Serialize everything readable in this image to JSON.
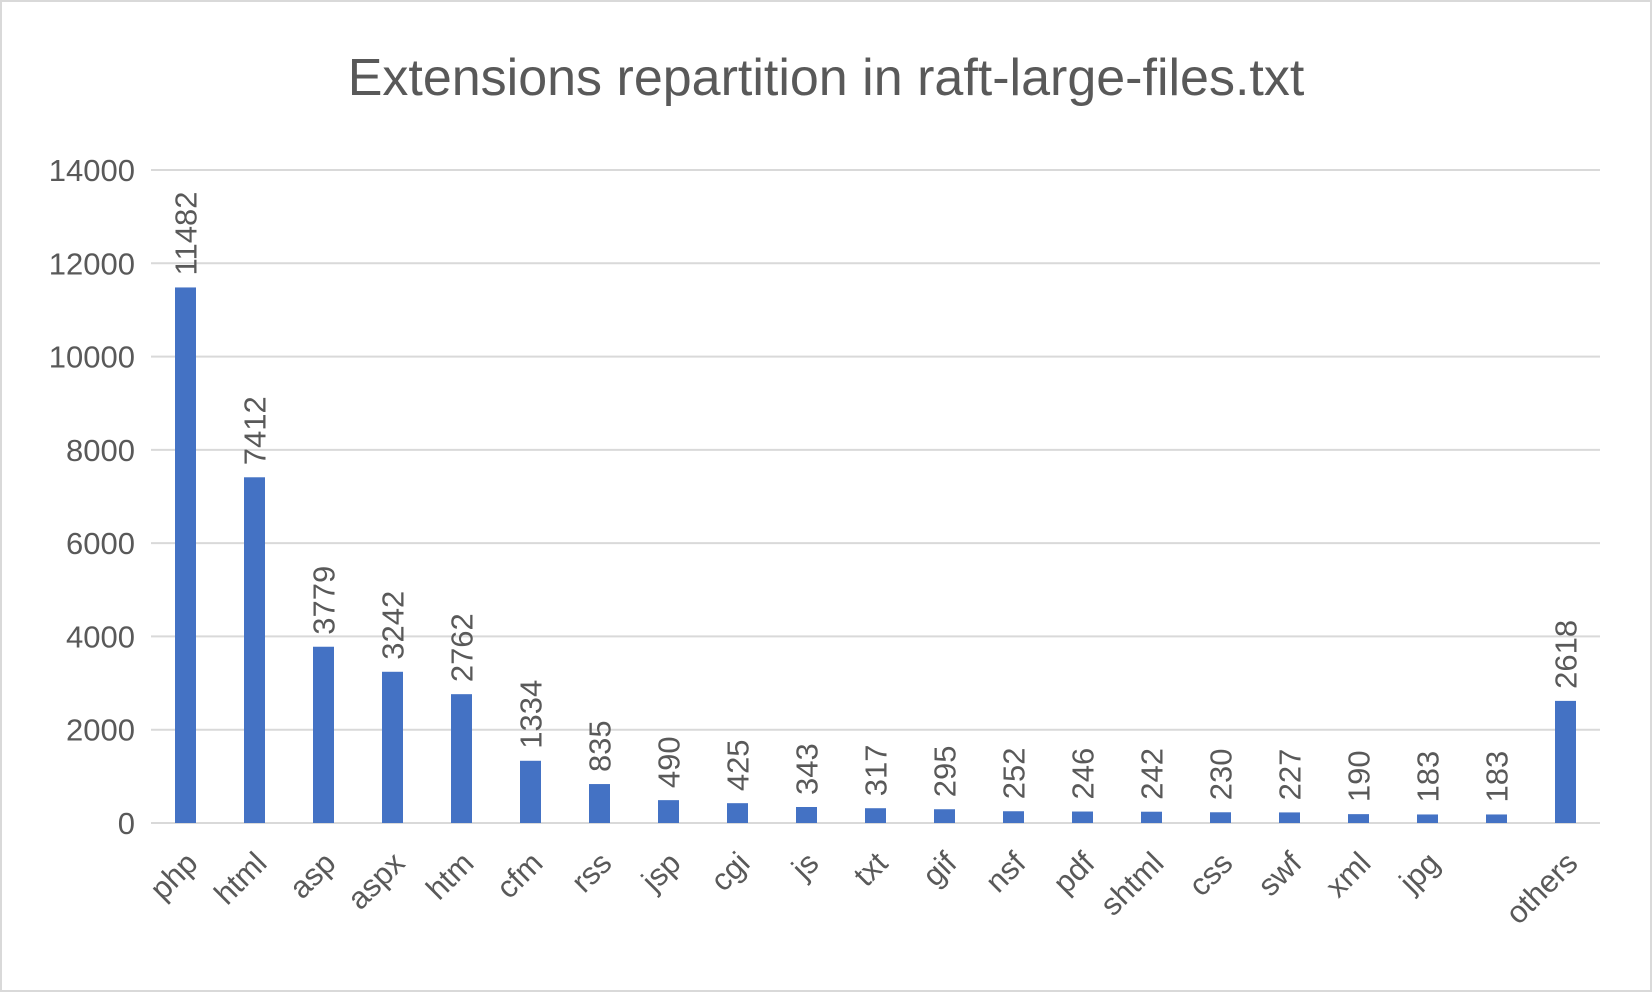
{
  "chart_data": {
    "type": "bar",
    "title": "Extensions repartition in raft-large-files.txt",
    "xlabel": "",
    "ylabel": "",
    "categories": [
      "php",
      "html",
      "asp",
      "aspx",
      "htm",
      "cfm",
      "rss",
      "jsp",
      "cgi",
      "js",
      "txt",
      "gif",
      "nsf",
      "pdf",
      "shtml",
      "css",
      "swf",
      "xml",
      "jpg",
      "",
      "others"
    ],
    "values": [
      11482,
      7412,
      3779,
      3242,
      2762,
      1334,
      835,
      490,
      425,
      343,
      317,
      295,
      252,
      246,
      242,
      230,
      227,
      190,
      183,
      183,
      2618
    ],
    "ylim": [
      0,
      14000
    ],
    "yticks": [
      0,
      2000,
      4000,
      6000,
      8000,
      10000,
      12000,
      14000
    ],
    "grid": true,
    "data_labels": true,
    "legend": "none",
    "colors": {
      "bar": "#4472C4",
      "grid": "#d9d9d9",
      "text": "#595959",
      "border": "#d9d9d9"
    }
  }
}
